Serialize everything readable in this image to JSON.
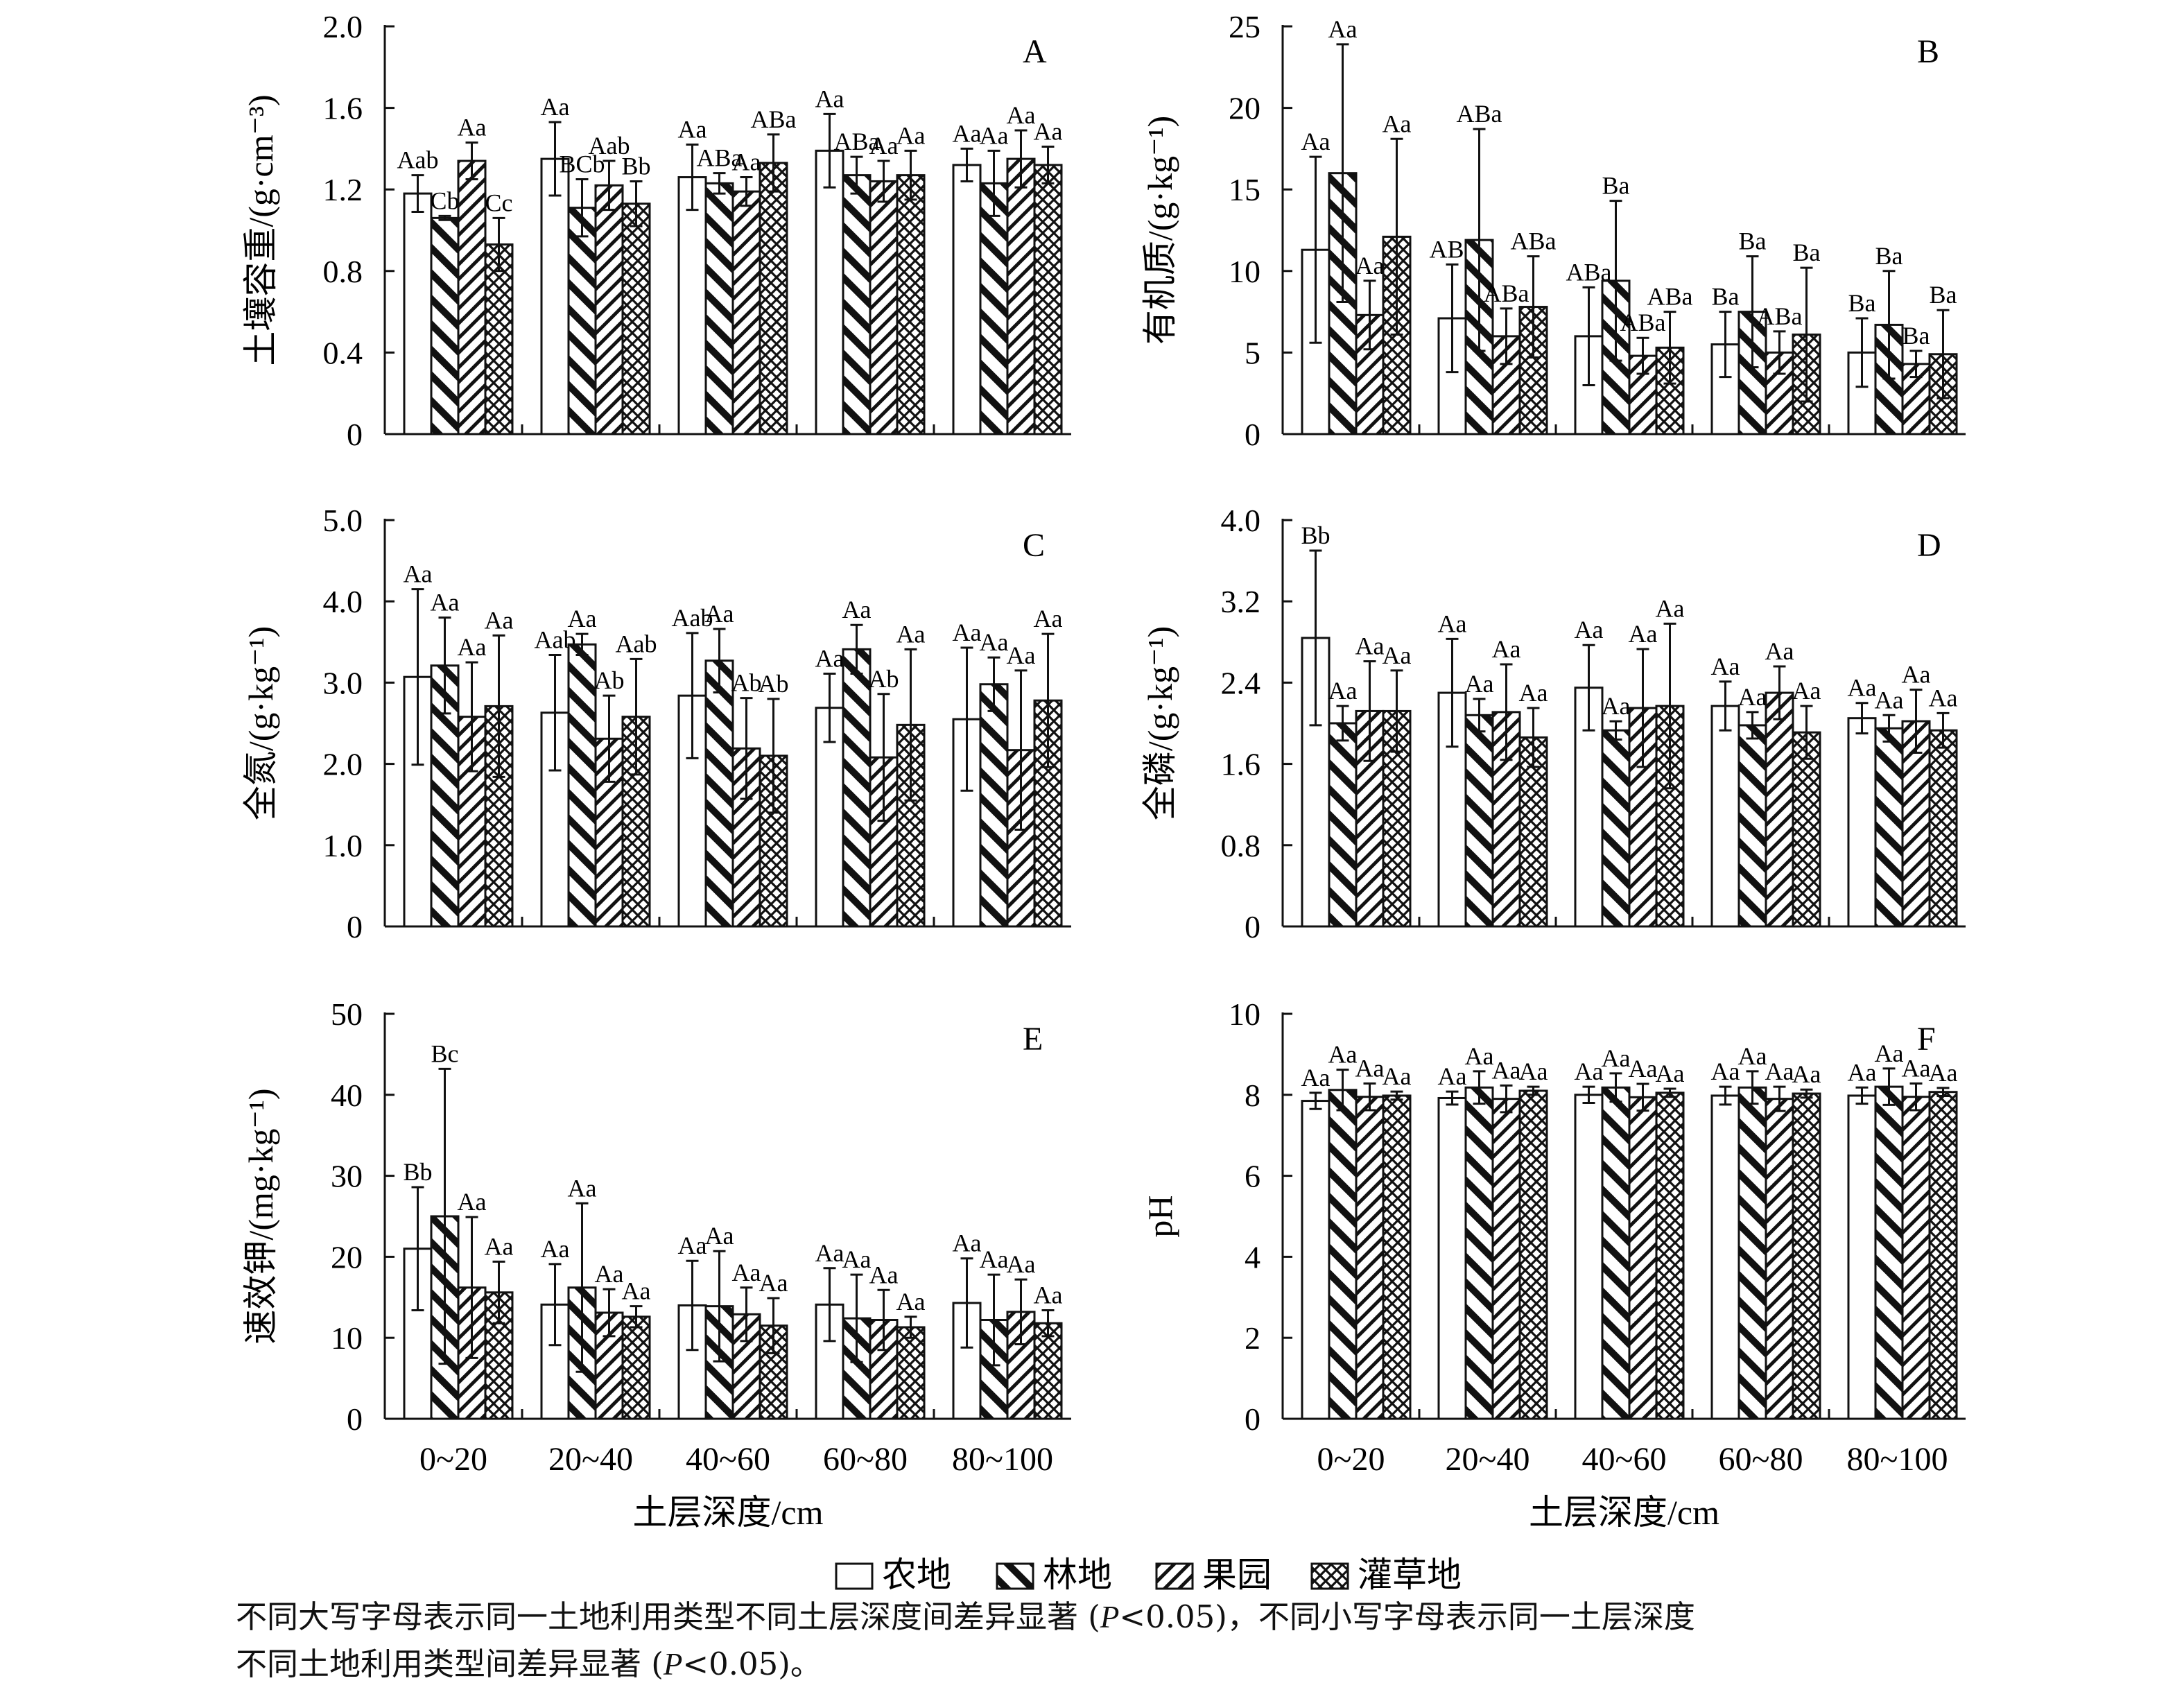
{
  "series_names": [
    "农地",
    "林地",
    "果园",
    "灌草地"
  ],
  "xlabel": "土层深度/cm",
  "caption": {
    "line1_a": "不同大写字母表示同一土地利用类型不同土层深度间差异显著 (",
    "line1_p": "P",
    "line1_b": "<0.05)，不同小写字母表示同一土层深度",
    "line2_a": "不同土地利用类型间差异显著 (",
    "line2_p": "P",
    "line2_b": "<0.05)。"
  },
  "chart_data": [
    {
      "panel": "A",
      "type": "bar",
      "ylabel": "土壤容重/(g·cm⁻³)",
      "ylim": [
        0,
        2.0
      ],
      "yticks": [
        "0",
        "0.4",
        "0.8",
        "1.2",
        "1.6",
        "2.0"
      ],
      "categories": [
        "0~20",
        "20~40",
        "40~60",
        "60~80",
        "80~100"
      ],
      "series": [
        {
          "name": "农地",
          "values": [
            1.18,
            1.35,
            1.26,
            1.39,
            1.32
          ],
          "errors": [
            0.09,
            0.18,
            0.16,
            0.18,
            0.08
          ],
          "labels": [
            "Aab",
            "Aa",
            "Aa",
            "Aa",
            "Aa"
          ]
        },
        {
          "name": "林地",
          "values": [
            1.06,
            1.11,
            1.23,
            1.27,
            1.23
          ],
          "errors": [
            0.01,
            0.14,
            0.05,
            0.09,
            0.16
          ],
          "labels": [
            "Cb",
            "BCb",
            "ABa",
            "ABa",
            "Aa"
          ]
        },
        {
          "name": "果园",
          "values": [
            1.34,
            1.22,
            1.19,
            1.24,
            1.35
          ],
          "errors": [
            0.09,
            0.12,
            0.07,
            0.1,
            0.14
          ],
          "labels": [
            "Aa",
            "Aab",
            "Aa",
            "Aa",
            "Aa"
          ]
        },
        {
          "name": "灌草地",
          "values": [
            0.93,
            1.13,
            1.33,
            1.27,
            1.32
          ],
          "errors": [
            0.13,
            0.11,
            0.14,
            0.12,
            0.09
          ],
          "labels": [
            "Cc",
            "Bb",
            "ABa",
            "Aa",
            "Aa"
          ]
        }
      ]
    },
    {
      "panel": "B",
      "type": "bar",
      "ylabel": "有机质/(g·kg⁻¹)",
      "ylim": [
        0,
        25
      ],
      "yticks": [
        "0",
        "5",
        "10",
        "15",
        "20",
        "25"
      ],
      "categories": [
        "0~20",
        "20~40",
        "40~60",
        "60~80",
        "80~100"
      ],
      "series": [
        {
          "name": "农地",
          "values": [
            11.3,
            7.1,
            6.0,
            5.5,
            5.0
          ],
          "errors": [
            5.7,
            3.3,
            3.0,
            2.0,
            2.1
          ],
          "labels": [
            "Aa",
            "ABa",
            "ABa",
            "Ba",
            "Ba"
          ]
        },
        {
          "name": "林地",
          "values": [
            16.0,
            11.9,
            9.4,
            7.5,
            6.7
          ],
          "errors": [
            7.9,
            6.8,
            4.9,
            3.4,
            3.3
          ],
          "labels": [
            "Aa",
            "ABa",
            "Ba",
            "Ba",
            "Ba"
          ]
        },
        {
          "name": "果园",
          "values": [
            7.3,
            6.0,
            4.8,
            5.0,
            4.3
          ],
          "errors": [
            2.1,
            1.7,
            1.1,
            1.3,
            0.8
          ],
          "labels": [
            "Aa",
            "ABa",
            "ABa",
            "ABa",
            "Ba"
          ]
        },
        {
          "name": "灌草地",
          "values": [
            12.1,
            7.8,
            5.3,
            6.1,
            4.9
          ],
          "errors": [
            6.0,
            3.1,
            2.2,
            4.1,
            2.7
          ],
          "labels": [
            "Aa",
            "ABa",
            "ABa",
            "Ba",
            "Ba"
          ]
        }
      ]
    },
    {
      "panel": "C",
      "type": "bar",
      "ylabel": "全氮/(g·kg⁻¹)",
      "ylim": [
        0,
        5.0
      ],
      "yticks": [
        "0",
        "1.0",
        "2.0",
        "3.0",
        "4.0",
        "5.0"
      ],
      "categories": [
        "0~20",
        "20~40",
        "40~60",
        "60~80",
        "80~100"
      ],
      "series": [
        {
          "name": "农地",
          "values": [
            3.07,
            2.63,
            2.84,
            2.69,
            2.55
          ],
          "errors": [
            1.08,
            0.71,
            0.77,
            0.42,
            0.88
          ],
          "labels": [
            "Aa",
            "Aab",
            "Aab",
            "Aa",
            "Aa"
          ]
        },
        {
          "name": "林地",
          "values": [
            3.21,
            3.47,
            3.27,
            3.41,
            2.98
          ],
          "errors": [
            0.59,
            0.13,
            0.39,
            0.3,
            0.33
          ],
          "labels": [
            "Aa",
            "Aa",
            "Aa",
            "Aa",
            "Aa"
          ]
        },
        {
          "name": "果园",
          "values": [
            2.58,
            2.31,
            2.19,
            2.08,
            2.17
          ],
          "errors": [
            0.67,
            0.53,
            0.62,
            0.78,
            0.98
          ],
          "labels": [
            "Aa",
            "Ab",
            "Ab",
            "Ab",
            "Aa"
          ]
        },
        {
          "name": "灌草地",
          "values": [
            2.71,
            2.58,
            2.1,
            2.48,
            2.78
          ],
          "errors": [
            0.87,
            0.71,
            0.7,
            0.93,
            0.82
          ],
          "labels": [
            "Aa",
            "Aab",
            "Ab",
            "Aa",
            "Aa"
          ]
        }
      ]
    },
    {
      "panel": "D",
      "type": "bar",
      "ylabel": "全磷/(g·kg⁻¹)",
      "ylim": [
        0,
        4.0
      ],
      "yticks": [
        "0",
        "0.8",
        "1.6",
        "2.4",
        "3.2",
        "4.0"
      ],
      "categories": [
        "0~20",
        "20~40",
        "40~60",
        "60~80",
        "80~100"
      ],
      "series": [
        {
          "name": "农地",
          "values": [
            2.84,
            2.3,
            2.35,
            2.17,
            2.05
          ],
          "errors": [
            0.86,
            0.53,
            0.42,
            0.24,
            0.15
          ],
          "labels": [
            "Bb",
            "Aa",
            "Aa",
            "Aa",
            "Aa"
          ]
        },
        {
          "name": "林地",
          "values": [
            2.0,
            2.08,
            1.93,
            1.98,
            1.95
          ],
          "errors": [
            0.17,
            0.16,
            0.09,
            0.13,
            0.13
          ],
          "labels": [
            "Aa",
            "Aa",
            "Aa",
            "Aa",
            "Aa"
          ]
        },
        {
          "name": "果园",
          "values": [
            2.12,
            2.11,
            2.15,
            2.3,
            2.02
          ],
          "errors": [
            0.49,
            0.47,
            0.58,
            0.26,
            0.31
          ],
          "labels": [
            "Aa",
            "Aa",
            "Aa",
            "Aa",
            "Aa"
          ]
        },
        {
          "name": "灌草地",
          "values": [
            2.12,
            1.86,
            2.17,
            1.91,
            1.93
          ],
          "errors": [
            0.4,
            0.29,
            0.81,
            0.26,
            0.17
          ],
          "labels": [
            "Aa",
            "Aa",
            "Aa",
            "Aa",
            "Aa"
          ]
        }
      ]
    },
    {
      "panel": "E",
      "type": "bar",
      "ylabel": "速效钾/(mg·kg⁻¹)",
      "ylim": [
        0,
        50
      ],
      "yticks": [
        "0",
        "10",
        "20",
        "30",
        "40",
        "50"
      ],
      "categories": [
        "0~20",
        "20~40",
        "40~60",
        "60~80",
        "80~100"
      ],
      "series": [
        {
          "name": "农地",
          "values": [
            21.0,
            14.1,
            14.0,
            14.1,
            14.3
          ],
          "errors": [
            7.6,
            5.0,
            5.5,
            4.5,
            5.5
          ],
          "labels": [
            "Bb",
            "Aa",
            "Aa",
            "Aa",
            "Aa"
          ]
        },
        {
          "name": "林地",
          "values": [
            25.0,
            16.2,
            13.9,
            12.4,
            12.2
          ],
          "errors": [
            18.2,
            10.4,
            6.8,
            5.4,
            5.6
          ],
          "labels": [
            "Bc",
            "Aa",
            "Aa",
            "Aa",
            "Aa"
          ]
        },
        {
          "name": "果园",
          "values": [
            16.2,
            13.1,
            12.9,
            12.2,
            13.2
          ],
          "errors": [
            8.7,
            2.9,
            3.3,
            3.7,
            4.0
          ],
          "labels": [
            "Aa",
            "Aa",
            "Aa",
            "Aa",
            "Aa"
          ]
        },
        {
          "name": "灌草地",
          "values": [
            15.6,
            12.6,
            11.5,
            11.3,
            11.8
          ],
          "errors": [
            3.8,
            1.3,
            3.4,
            1.3,
            1.6
          ],
          "labels": [
            "Aa",
            "Aa",
            "Aa",
            "Aa",
            "Aa"
          ]
        }
      ]
    },
    {
      "panel": "F",
      "type": "bar",
      "ylabel": "pH",
      "ylim": [
        0,
        10
      ],
      "yticks": [
        "0",
        "2",
        "4",
        "6",
        "8",
        "10"
      ],
      "categories": [
        "0~20",
        "20~40",
        "40~60",
        "60~80",
        "80~100"
      ],
      "series": [
        {
          "name": "农地",
          "values": [
            7.85,
            7.92,
            8.0,
            7.98,
            7.98
          ],
          "errors": [
            0.2,
            0.16,
            0.2,
            0.22,
            0.2
          ],
          "labels": [
            "Aa",
            "Aa",
            "Aa",
            "Aa",
            "Aa"
          ]
        },
        {
          "name": "林地",
          "values": [
            8.12,
            8.18,
            8.18,
            8.18,
            8.2
          ],
          "errors": [
            0.5,
            0.4,
            0.35,
            0.4,
            0.45
          ],
          "labels": [
            "Aa",
            "Aa",
            "Aa",
            "Aa",
            "Aa"
          ]
        },
        {
          "name": "果园",
          "values": [
            7.95,
            7.9,
            7.94,
            7.9,
            7.95
          ],
          "errors": [
            0.33,
            0.33,
            0.33,
            0.3,
            0.33
          ],
          "labels": [
            "Aa",
            "Aa",
            "Aa",
            "Aa",
            "Aa"
          ]
        },
        {
          "name": "灌草地",
          "values": [
            7.98,
            8.1,
            8.05,
            8.03,
            8.07
          ],
          "errors": [
            0.1,
            0.1,
            0.1,
            0.1,
            0.1
          ],
          "labels": [
            "Aa",
            "Aa",
            "Aa",
            "Aa",
            "Aa"
          ]
        }
      ]
    }
  ],
  "colors": {
    "ink": "#111111",
    "fill": "#ffffff"
  }
}
